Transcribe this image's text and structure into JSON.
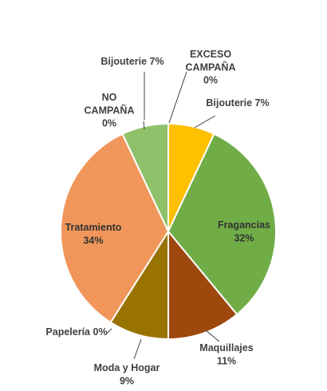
{
  "chart_data": {
    "type": "pie",
    "title": "",
    "legend": "none",
    "slices": [
      {
        "label": "Bijouterie",
        "value": 7,
        "display": "7%",
        "color": "#FFC000"
      },
      {
        "label": "Fragancias",
        "value": 32,
        "display": "32%",
        "color": "#70AD47"
      },
      {
        "label": "Maquillajes",
        "value": 11,
        "display": "11%",
        "color": "#9E480E"
      },
      {
        "label": "Moda y Hogar",
        "value": 9,
        "display": "9%",
        "color": "#997300"
      },
      {
        "label": "Papelería",
        "value": 0,
        "display": "0%",
        "color": "#5B9BD5"
      },
      {
        "label": "Tratamiento",
        "value": 34,
        "display": "34%",
        "color": "#F0965A"
      },
      {
        "label": "NO CAMPAÑA",
        "value": 0,
        "display": "0%",
        "color": "#A5A5A5"
      },
      {
        "label": "Bijouterie",
        "value": 7,
        "display": "7%",
        "color": "#8FC16A"
      },
      {
        "label": "EXCESO CAMPAÑA",
        "value": 0,
        "display": "0%",
        "color": "#264478"
      }
    ]
  }
}
